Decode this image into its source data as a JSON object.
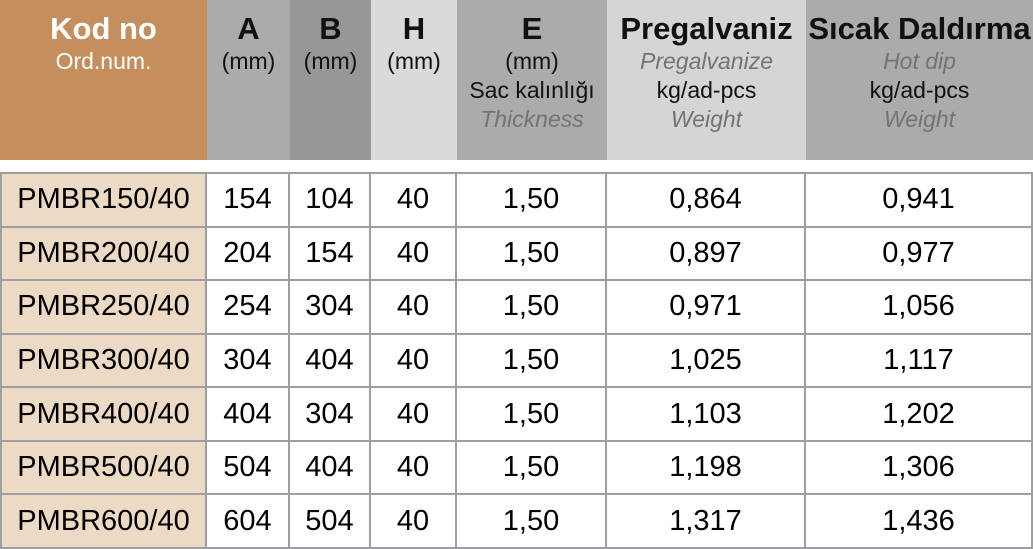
{
  "colors": {
    "header_tan": "#C48F5C",
    "row_code_tan": "#ECDAC5",
    "col_a_gray": "#A9ABAE",
    "col_b_gray": "#95979A",
    "col_h_gray": "#D9DADB",
    "col_e_gray": "#A9ABAE",
    "col_pregalvaniz_gray": "#D4D5D7",
    "col_hotdip_gray": "#A9ABAE",
    "grid_line_gray": "#9C9EA1",
    "muted_italic_text": "#717376"
  },
  "header": {
    "kod": {
      "title": "Kod no",
      "subtitle": "Ord.num."
    },
    "a": {
      "title": "A",
      "unit": "(mm)"
    },
    "b": {
      "title": "B",
      "unit": "(mm)"
    },
    "h": {
      "title": "H",
      "unit": "(mm)"
    },
    "e": {
      "title": "E",
      "unit": "(mm)",
      "desc_tr": "Sac kalınlığı",
      "desc_en": "Thickness"
    },
    "pregalvaniz": {
      "title": "Pregalvaniz",
      "subtitle": "Pregalvanize",
      "unit": "kg/ad-pcs",
      "measure": "Weight"
    },
    "sicak": {
      "title": "Sıcak Daldırma",
      "subtitle": "Hot dip",
      "unit": "kg/ad-pcs",
      "measure": "Weight"
    }
  },
  "rows": [
    {
      "kod": "PMBR150/40",
      "a": "154",
      "b": "104",
      "h": "40",
      "e": "1,50",
      "pre": "0,864",
      "hot": "0,941"
    },
    {
      "kod": "PMBR200/40",
      "a": "204",
      "b": "154",
      "h": "40",
      "e": "1,50",
      "pre": "0,897",
      "hot": "0,977"
    },
    {
      "kod": "PMBR250/40",
      "a": "254",
      "b": "304",
      "h": "40",
      "e": "1,50",
      "pre": "0,971",
      "hot": "1,056"
    },
    {
      "kod": "PMBR300/40",
      "a": "304",
      "b": "404",
      "h": "40",
      "e": "1,50",
      "pre": "1,025",
      "hot": "1,117"
    },
    {
      "kod": "PMBR400/40",
      "a": "404",
      "b": "304",
      "h": "40",
      "e": "1,50",
      "pre": "1,103",
      "hot": "1,202"
    },
    {
      "kod": "PMBR500/40",
      "a": "504",
      "b": "404",
      "h": "40",
      "e": "1,50",
      "pre": "1,198",
      "hot": "1,306"
    },
    {
      "kod": "PMBR600/40",
      "a": "604",
      "b": "504",
      "h": "40",
      "e": "1,50",
      "pre": "1,317",
      "hot": "1,436"
    }
  ]
}
